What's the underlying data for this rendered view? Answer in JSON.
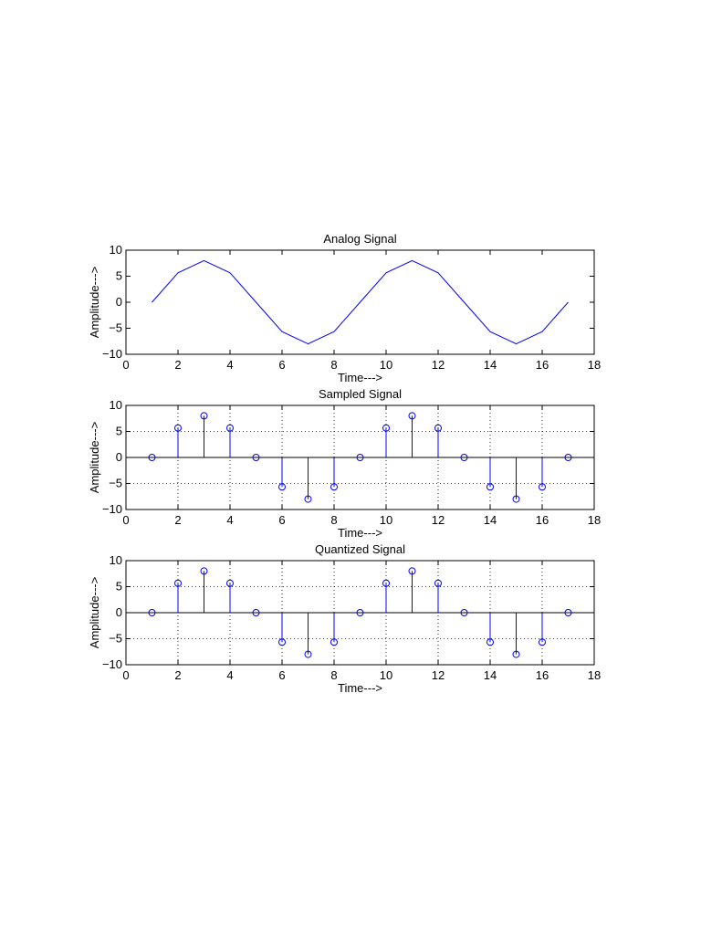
{
  "colors": {
    "series": "#0000ff",
    "axis": "#000000",
    "background": "#ffffff"
  },
  "chart_data": [
    {
      "type": "line",
      "title": "Analog Signal",
      "xlabel": "Time--->",
      "ylabel": "Amplitude--->",
      "xlim": [
        0,
        18
      ],
      "ylim": [
        -10,
        10
      ],
      "xticks": [
        0,
        2,
        4,
        6,
        8,
        10,
        12,
        14,
        16,
        18
      ],
      "yticks": [
        10,
        5,
        0,
        -5,
        -10
      ],
      "grid": false,
      "x": [
        1,
        2,
        3,
        4,
        5,
        6,
        7,
        8,
        9,
        10,
        11,
        12,
        13,
        14,
        15,
        16,
        17
      ],
      "values": [
        0,
        5.66,
        8,
        5.66,
        0,
        -5.66,
        -8,
        -5.66,
        0,
        5.66,
        8,
        5.66,
        0,
        -5.66,
        -8,
        -5.66,
        0
      ]
    },
    {
      "type": "stem",
      "title": "Sampled Signal",
      "xlabel": "Time--->",
      "ylabel": "Amplitude--->",
      "xlim": [
        0,
        18
      ],
      "ylim": [
        -10,
        10
      ],
      "xticks": [
        0,
        2,
        4,
        6,
        8,
        10,
        12,
        14,
        16,
        18
      ],
      "yticks": [
        10,
        5,
        0,
        -5,
        -10
      ],
      "grid": true,
      "x": [
        1,
        2,
        3,
        4,
        5,
        6,
        7,
        8,
        9,
        10,
        11,
        12,
        13,
        14,
        15,
        16,
        17
      ],
      "values": [
        0,
        5.66,
        8,
        5.66,
        0,
        -5.66,
        -8,
        -5.66,
        0,
        5.66,
        8,
        5.66,
        0,
        -5.66,
        -8,
        -5.66,
        0
      ]
    },
    {
      "type": "stem",
      "title": "Quantized Signal",
      "xlabel": "Time--->",
      "ylabel": "Amplitude--->",
      "xlim": [
        0,
        18
      ],
      "ylim": [
        -10,
        10
      ],
      "xticks": [
        0,
        2,
        4,
        6,
        8,
        10,
        12,
        14,
        16,
        18
      ],
      "yticks": [
        10,
        5,
        0,
        -5,
        -10
      ],
      "grid": true,
      "x": [
        1,
        2,
        3,
        4,
        5,
        6,
        7,
        8,
        9,
        10,
        11,
        12,
        13,
        14,
        15,
        16,
        17
      ],
      "values": [
        0,
        5.66,
        8,
        5.66,
        0,
        -5.66,
        -8,
        -5.66,
        0,
        5.66,
        8,
        5.66,
        0,
        -5.66,
        -8,
        -5.66,
        0
      ]
    }
  ]
}
